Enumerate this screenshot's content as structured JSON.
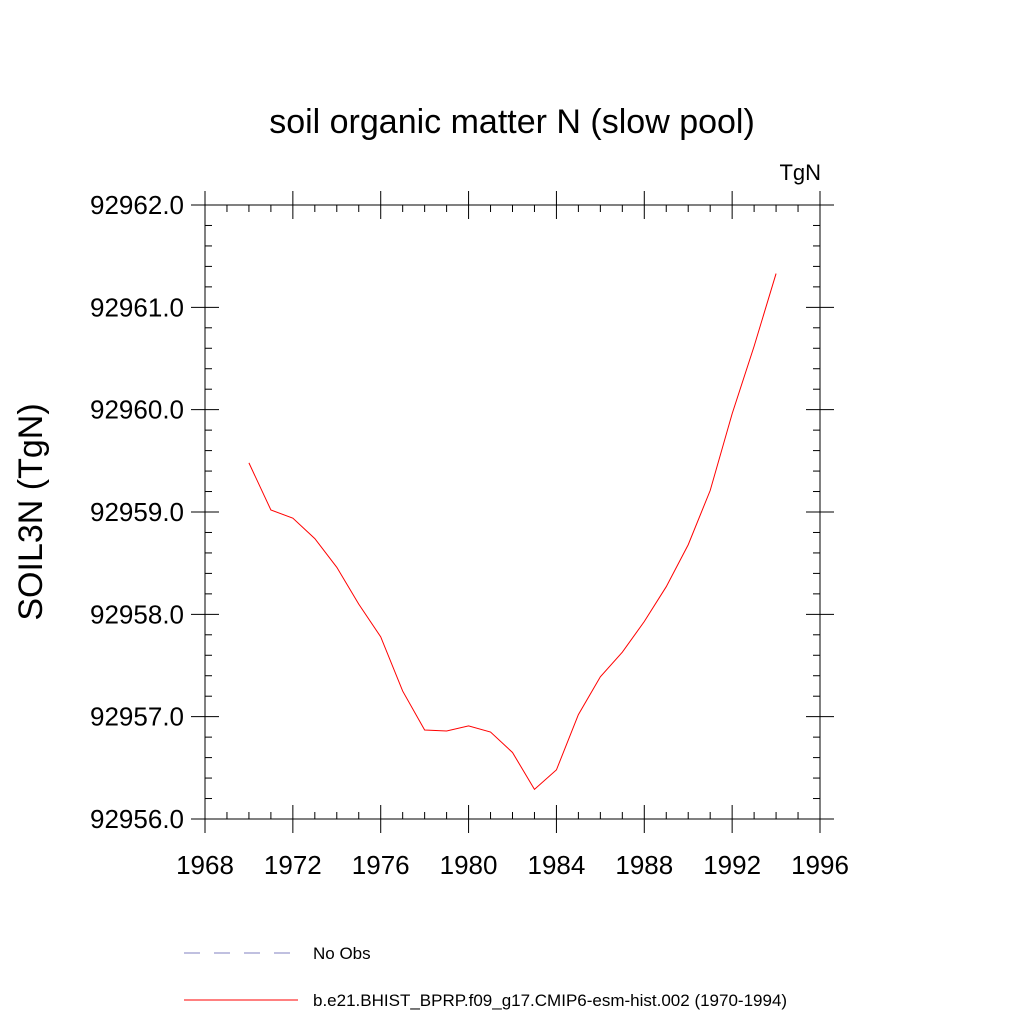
{
  "chart_data": {
    "type": "line",
    "title": "soil organic matter N (slow pool)",
    "units_label": "TgN",
    "ylabel": "SOIL3N  (TgN)",
    "xlabel": "",
    "xlim": [
      1968,
      1996
    ],
    "ylim": [
      92956.0,
      92962.0
    ],
    "x_ticks": [
      1968,
      1972,
      1976,
      1980,
      1984,
      1988,
      1992,
      1996
    ],
    "x_tick_labels": [
      "1968",
      "1972",
      "1976",
      "1980",
      "1984",
      "1988",
      "1992",
      "1996"
    ],
    "y_ticks": [
      92956.0,
      92957.0,
      92958.0,
      92959.0,
      92960.0,
      92961.0,
      92962.0
    ],
    "y_tick_labels": [
      "92956.0",
      "92957.0",
      "92958.0",
      "92959.0",
      "92960.0",
      "92961.0",
      "92962.0"
    ],
    "x_minor_step": 1,
    "y_minor_step": 0.2,
    "grid": false,
    "legend_position": "bottom",
    "series": [
      {
        "name": "b.e21.BHIST_BPRP.f09_g17.CMIP6-esm-hist.002 (1970-1994)",
        "color": "#ff0000",
        "style": "solid",
        "x": [
          1970,
          1971,
          1972,
          1973,
          1974,
          1975,
          1976,
          1977,
          1978,
          1979,
          1980,
          1981,
          1982,
          1983,
          1984,
          1985,
          1986,
          1987,
          1988,
          1989,
          1990,
          1991,
          1992,
          1993,
          1994
        ],
        "values": [
          92959.48,
          92959.02,
          92958.94,
          92958.74,
          92958.46,
          92958.1,
          92957.78,
          92957.25,
          92956.87,
          92956.86,
          92956.91,
          92956.85,
          92956.65,
          92956.29,
          92956.48,
          92957.02,
          92957.39,
          92957.63,
          92957.93,
          92958.27,
          92958.68,
          92959.21,
          92959.96,
          92960.62,
          92961.33
        ]
      }
    ],
    "legend": [
      {
        "label": "No Obs",
        "color": "#8080c0",
        "style": "dashed"
      },
      {
        "label": "b.e21.BHIST_BPRP.f09_g17.CMIP6-esm-hist.002 (1970-1994)",
        "color": "#ff0000",
        "style": "solid"
      }
    ]
  }
}
